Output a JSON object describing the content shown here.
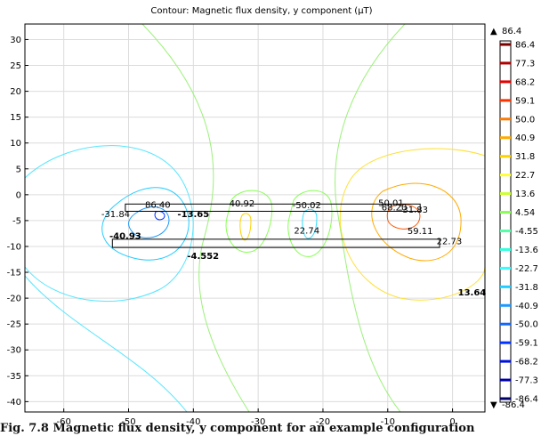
{
  "chart_data": {
    "type": "contour",
    "title": "Contour: Magnetic flux density, y component (μT)",
    "xlabel": "",
    "ylabel": "",
    "xlim": [
      -66,
      5
    ],
    "ylim": [
      -42,
      33
    ],
    "x_ticks": [
      -60,
      -50,
      -40,
      -30,
      -20,
      -10,
      0
    ],
    "y_ticks": [
      30,
      25,
      20,
      15,
      10,
      5,
      0,
      -5,
      -10,
      -15,
      -20,
      -25,
      -30,
      -35,
      -40
    ],
    "grid": true,
    "colorbar": {
      "max_label": "86.4",
      "min_label": "-86.4",
      "levels": [
        "86.4",
        "77.3",
        "68.2",
        "59.1",
        "50.0",
        "40.9",
        "31.8",
        "22.7",
        "13.6",
        "4.54",
        "-4.55",
        "-13.6",
        "-22.7",
        "-31.8",
        "-40.9",
        "-50.0",
        "-59.1",
        "-68.2",
        "-77.3",
        "-86.4"
      ],
      "colors": [
        "#7a0000",
        "#b00000",
        "#e60000",
        "#ff3300",
        "#ff7a00",
        "#ffaa00",
        "#ffd200",
        "#ffff33",
        "#ccff33",
        "#88ff55",
        "#55ffaa",
        "#33ffdd",
        "#33ffff",
        "#22ccff",
        "#1a99ff",
        "#1066ff",
        "#0033ff",
        "#0011dd",
        "#0000aa",
        "#000066"
      ]
    },
    "conductors": [
      {
        "x": [
          -50.5,
          -5
        ],
        "y": [
          -1.8,
          -3.2
        ]
      },
      {
        "x": [
          -52.5,
          -2
        ],
        "y": [
          -8.6,
          -10.2
        ]
      }
    ],
    "contour_labels": [
      {
        "text": "86.40",
        "x": -45.5,
        "y": -2.5,
        "bold": false
      },
      {
        "text": "-31.84",
        "x": -52,
        "y": -4.3,
        "bold": false
      },
      {
        "text": "-13.65",
        "x": -40,
        "y": -4.3,
        "bold": true
      },
      {
        "text": "-40.93",
        "x": -50.5,
        "y": -8.5,
        "bold": true
      },
      {
        "text": "40.92",
        "x": -32.5,
        "y": -2.3,
        "bold": false
      },
      {
        "text": "-50.02",
        "x": -22.5,
        "y": -2.6,
        "bold": false
      },
      {
        "text": "22.74",
        "x": -22.5,
        "y": -7.5,
        "bold": false
      },
      {
        "text": "-4.552",
        "x": -38.5,
        "y": -12.4,
        "bold": true
      },
      {
        "text": "50.01",
        "x": -9.5,
        "y": -2.2,
        "bold": false
      },
      {
        "text": "68.20",
        "x": -9,
        "y": -3,
        "bold": false
      },
      {
        "text": "-31.83",
        "x": -6,
        "y": -3.5,
        "bold": false
      },
      {
        "text": "59.11",
        "x": -5,
        "y": -7.6,
        "bold": false
      },
      {
        "text": "22.73",
        "x": -0.5,
        "y": -9.6,
        "bold": false
      },
      {
        "text": "13.64",
        "x": 3,
        "y": -19.5,
        "bold": true
      }
    ]
  },
  "caption": "Fig. 7.8 Magnetic flux density, y component for an example configuration"
}
